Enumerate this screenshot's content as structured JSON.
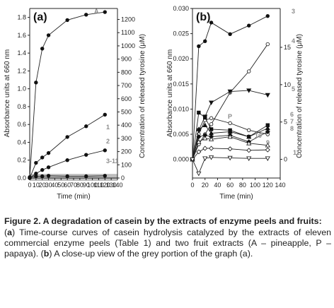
{
  "figure": {
    "caption_title": "Figure 2. A degradation of casein by the extracts of enzyme peels and fruits:",
    "caption_parts": [
      {
        "text": "(",
        "bold": false
      },
      {
        "text": "a",
        "bold": true
      },
      {
        "text": ") Time-course curves of casein hydrolysis catalyzed by the extracts of eleven commercial enzyme peels (Table 1) and two fruit extracts (A – pineapple, P – papaya). (",
        "bold": false
      },
      {
        "text": "b",
        "bold": true
      },
      {
        "text": ") A close-up view of the grey portion of the graph (a).",
        "bold": false
      }
    ]
  },
  "chart_data": [
    {
      "type": "line",
      "panel_label": "(a)",
      "xlabel": "Time (min)",
      "ylabel": "Absorbance units at 660 nm",
      "y2label": "Concentration of released tyrosine (μM)",
      "xlim": [
        0,
        140
      ],
      "ylim": [
        0,
        1.9
      ],
      "y2lim": [
        0,
        1283
      ],
      "x_ticks": [
        0,
        10,
        20,
        30,
        40,
        50,
        60,
        70,
        80,
        90,
        100,
        110,
        120,
        130,
        140
      ],
      "y_ticks": [
        0.0,
        0.2,
        0.4,
        0.6,
        0.8,
        1.0,
        1.2,
        1.4,
        1.6,
        1.8
      ],
      "y2_ticks": [
        0,
        100,
        200,
        300,
        400,
        500,
        600,
        700,
        800,
        900,
        1000,
        1100,
        1200
      ],
      "shaded_band": [
        0,
        0.03
      ],
      "series": [
        {
          "name": "A",
          "x": [
            0,
            10,
            20,
            30,
            60,
            90,
            120
          ],
          "y": [
            0.0,
            1.07,
            1.45,
            1.6,
            1.77,
            1.83,
            1.86
          ],
          "color": "#222222"
        },
        {
          "name": "1",
          "x": [
            0,
            10,
            20,
            30,
            60,
            90,
            120
          ],
          "y": [
            0.0,
            0.17,
            0.23,
            0.28,
            0.46,
            0.58,
            0.71
          ],
          "color": "#222222"
        },
        {
          "name": "2",
          "x": [
            0,
            10,
            20,
            30,
            60,
            90,
            120
          ],
          "y": [
            0.0,
            0.05,
            0.09,
            0.12,
            0.2,
            0.26,
            0.31
          ],
          "color": "#222222"
        },
        {
          "name": "3-11",
          "x": [
            0,
            10,
            20,
            30,
            60,
            90,
            120
          ],
          "y": [
            0.01,
            0.02,
            0.02,
            0.025,
            0.02,
            0.02,
            0.025
          ],
          "color": "#222222"
        }
      ],
      "label_colors": {
        "A": "#8c8c8c",
        "1": "#8c8c8c",
        "2": "#8c8c8c",
        "3-11": "#8c8c8c"
      }
    },
    {
      "type": "line",
      "panel_label": "(b)",
      "xlabel": "Time (min)",
      "ylabel": "Absorbance units at 660 nm",
      "y2label": "Concentration of released tyrosine (μM)",
      "xlim": [
        0,
        140
      ],
      "ylim": [
        -0.0037,
        0.03
      ],
      "y2lim": [
        -2.5,
        20.2
      ],
      "x_ticks": [
        0,
        20,
        40,
        60,
        80,
        100,
        120,
        140
      ],
      "y_ticks": [
        0.0,
        0.005,
        0.01,
        0.015,
        0.02,
        0.025,
        0.03
      ],
      "y_tick_labels": [
        "0.000",
        "0.005",
        "0.010",
        "0.015",
        "0.020",
        "0.025",
        "0.030"
      ],
      "y2_ticks": [
        0,
        5,
        10,
        15
      ],
      "series": [
        {
          "name": "3",
          "x": [
            0,
            10,
            20,
            30,
            60,
            90,
            120
          ],
          "y": [
            0.0,
            0.0225,
            0.0235,
            0.0272,
            0.0249,
            0.0266,
            0.0285
          ],
          "marker": "filled-circle"
        },
        {
          "name": "4",
          "x": [
            0,
            10,
            20,
            30,
            60,
            90,
            120
          ],
          "y": [
            0.0,
            0.003,
            0.005,
            0.007,
            0.0133,
            0.0175,
            0.0229
          ],
          "marker": "open-circle"
        },
        {
          "name": "5",
          "x": [
            0,
            10,
            20,
            30,
            60,
            90,
            120
          ],
          "y": [
            0.0,
            0.0058,
            0.0085,
            0.0113,
            0.0135,
            0.0137,
            0.0128
          ],
          "marker": "filled-triangle-down"
        },
        {
          "name": "P",
          "x": [
            0,
            10,
            20,
            30,
            60,
            90,
            120
          ],
          "y": [
            0.0,
            0.005,
            0.0078,
            0.0082,
            0.0072,
            0.0058,
            0.005
          ],
          "marker": "open-circle"
        },
        {
          "name": "6",
          "x": [
            0,
            10,
            20,
            30,
            60,
            90,
            120
          ],
          "y": [
            0.0,
            0.0093,
            0.0083,
            0.006,
            0.0058,
            0.0045,
            0.0068
          ],
          "marker": "filled-square"
        },
        {
          "name": "7",
          "x": [
            0,
            10,
            20,
            30,
            60,
            90,
            120
          ],
          "y": [
            0.0,
            0.006,
            0.0068,
            0.0052,
            0.0055,
            0.0045,
            0.0062
          ],
          "marker": "filled-triangle-up"
        },
        {
          "name": "8",
          "x": [
            0,
            10,
            20,
            30,
            60,
            90,
            120
          ],
          "y": [
            0.0,
            0.0045,
            0.0048,
            0.0045,
            0.0048,
            0.0035,
            0.0055
          ],
          "marker": "filled-diamond"
        },
        {
          "name": "10",
          "x": [
            0,
            10,
            20,
            30,
            60,
            90,
            120
          ],
          "y": [
            0.0,
            0.0035,
            0.0042,
            0.004,
            0.0045,
            0.0032,
            0.0028
          ],
          "marker": "open-triangle-up"
        },
        {
          "name": "9",
          "x": [
            0,
            10,
            20,
            30,
            60,
            90,
            120
          ],
          "y": [
            0.0,
            0.0015,
            0.0022,
            0.0022,
            0.0021,
            0.0018,
            0.0019
          ],
          "marker": "open-diamond"
        },
        {
          "name": "11",
          "x": [
            0,
            10,
            20,
            30,
            60,
            90,
            120
          ],
          "y": [
            0.0,
            -0.0028,
            0.0002,
            0.0004,
            0.0003,
            0.0002,
            0.0002
          ],
          "marker": "open-triangle-down"
        }
      ],
      "line_color": "#222222",
      "label_color": "#8c8c8c"
    }
  ]
}
